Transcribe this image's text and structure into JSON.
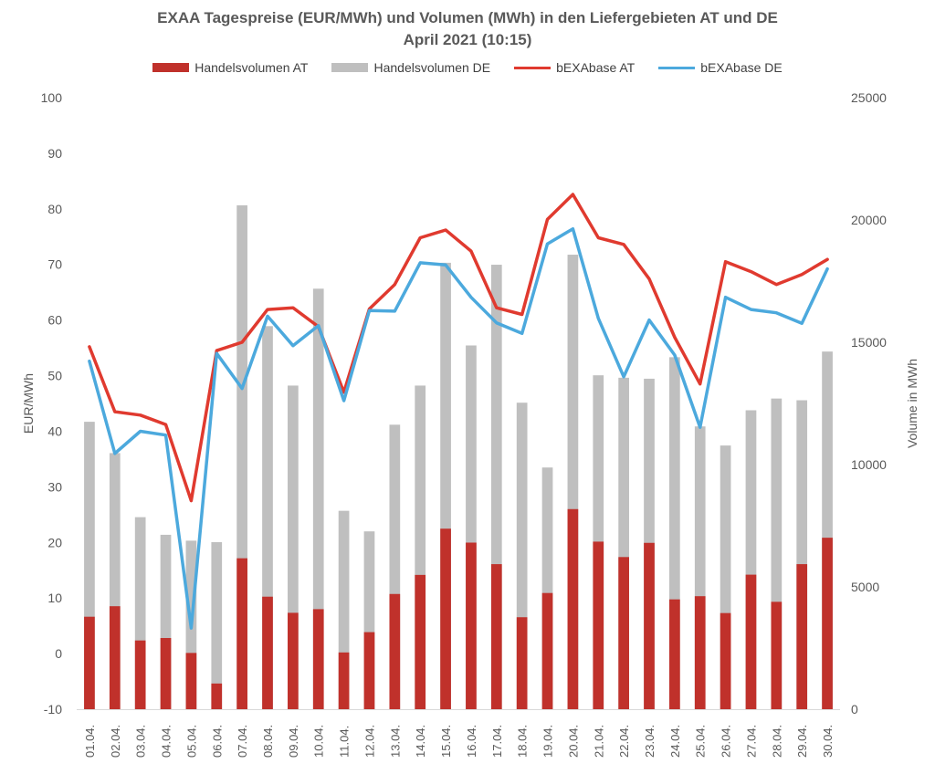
{
  "chart_data": {
    "type": "bar",
    "title": "EXAA Tagespreise (EUR/MWh) und Volumen (MWh) in den Liefergebieten AT und DE",
    "subtitle": "April 2021 (10:15)",
    "ylabel": "EUR/MWh",
    "y2label": "Volume in MWh",
    "ylim": [
      -10,
      100
    ],
    "y2lim": [
      0,
      25000
    ],
    "yticks": [
      "100",
      "90",
      "80",
      "70",
      "60",
      "50",
      "40",
      "30",
      "20",
      "10",
      "0",
      "-10"
    ],
    "y2ticks": [
      "25000",
      "20000",
      "15000",
      "10000",
      "5000",
      "0"
    ],
    "categories": [
      "01.04.",
      "02.04.",
      "03.04.",
      "04.04.",
      "05.04.",
      "06.04.",
      "07.04.",
      "08.04.",
      "09.04.",
      "10.04.",
      "11.04.",
      "12.04.",
      "13.04.",
      "14.04.",
      "15.04.",
      "16.04.",
      "17.04.",
      "18.04.",
      "19.04.",
      "20.04.",
      "21.04.",
      "22.04.",
      "23.04.",
      "24.04.",
      "25.04.",
      "26.04.",
      "27.04.",
      "28.04.",
      "29.04.",
      "30.04."
    ],
    "legend_position": "top",
    "series": [
      {
        "name": "Handelsvolumen AT",
        "kind": "bar",
        "axis": "right",
        "color": "#c0312b",
        "values": [
          3780,
          4210,
          2810,
          2910,
          2300,
          1050,
          6170,
          4600,
          3940,
          4090,
          2320,
          3150,
          4710,
          5490,
          7380,
          6810,
          5930,
          3760,
          4750,
          8180,
          6850,
          6220,
          6800,
          4490,
          4620,
          3930,
          5500,
          4390,
          5930,
          7010
        ]
      },
      {
        "name": "Handelsvolumen DE",
        "kind": "bar",
        "axis": "right",
        "color": "#bfbfbf",
        "values": [
          11750,
          10470,
          7850,
          7130,
          6890,
          6830,
          20600,
          15660,
          13230,
          17190,
          8110,
          7270,
          11630,
          13230,
          18250,
          14870,
          18170,
          12530,
          9880,
          18580,
          13650,
          13550,
          13510,
          14390,
          11560,
          10780,
          12220,
          12700,
          12630,
          14620
        ]
      },
      {
        "name": "bEXAbase AT",
        "kind": "line",
        "axis": "left",
        "color": "#e03a2f",
        "values": [
          55.2,
          43.5,
          42.9,
          41.2,
          27.5,
          54.5,
          56.0,
          61.9,
          62.2,
          58.8,
          47.0,
          62.0,
          66.4,
          74.8,
          76.2,
          72.4,
          62.2,
          61.0,
          78.1,
          82.6,
          74.8,
          73.6,
          67.4,
          56.9,
          48.5,
          70.5,
          68.7,
          66.4,
          68.2,
          70.9
        ]
      },
      {
        "name": "bEXAbase DE",
        "kind": "line",
        "axis": "left",
        "color": "#4ca9dd",
        "values": [
          52.6,
          36.0,
          40.0,
          39.3,
          4.6,
          54.0,
          47.7,
          60.7,
          55.4,
          59.0,
          45.5,
          61.7,
          61.6,
          70.3,
          69.9,
          64.1,
          59.5,
          57.6,
          73.7,
          76.4,
          60.3,
          49.8,
          60.0,
          53.7,
          40.7,
          64.1,
          61.9,
          61.3,
          59.4,
          69.2
        ]
      }
    ]
  }
}
